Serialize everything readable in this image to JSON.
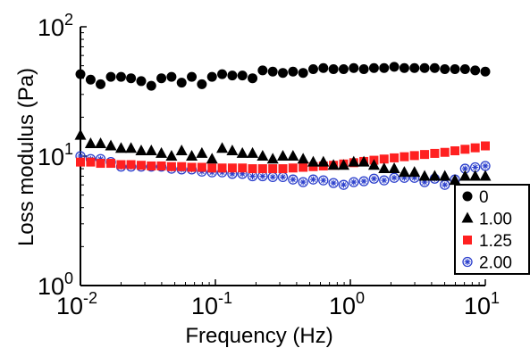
{
  "chart_data": {
    "type": "scatter",
    "title": "",
    "xlabel": "Frequency (Hz)",
    "ylabel": "Loss modulus (Pa)",
    "xscale": "log",
    "yscale": "log",
    "xlim": [
      0.01,
      10
    ],
    "ylim": [
      1,
      100
    ],
    "grid": false,
    "legend_position": "bottom-right",
    "x_ticks": [
      {
        "base": "10",
        "exp": "-2",
        "value": 0.01
      },
      {
        "base": "10",
        "exp": "-1",
        "value": 0.1
      },
      {
        "base": "10",
        "exp": "0",
        "value": 1
      },
      {
        "base": "10",
        "exp": "1",
        "value": 10
      }
    ],
    "y_ticks": [
      {
        "base": "10",
        "exp": "0",
        "value": 1
      },
      {
        "base": "10",
        "exp": "1",
        "value": 10
      },
      {
        "base": "10",
        "exp": "2",
        "value": 100
      }
    ],
    "x": [
      0.01,
      0.0119,
      0.0141,
      0.0168,
      0.02,
      0.0237,
      0.0282,
      0.0335,
      0.0398,
      0.0473,
      0.0562,
      0.0668,
      0.0794,
      0.0944,
      0.1122,
      0.1334,
      0.1585,
      0.1884,
      0.2239,
      0.2661,
      0.3162,
      0.3758,
      0.4467,
      0.5309,
      0.631,
      0.7499,
      0.8913,
      1.0593,
      1.2589,
      1.4962,
      1.7783,
      2.1135,
      2.5119,
      2.9854,
      3.5481,
      4.217,
      5.0119,
      5.9566,
      7.0795,
      8.4139,
      10.0
    ],
    "series": [
      {
        "name": "0",
        "marker": "circle",
        "color": "#000000",
        "values": [
          43,
          39,
          36,
          41,
          41,
          40,
          38,
          35,
          40,
          41,
          37,
          41,
          36,
          41,
          43,
          42,
          42,
          40,
          46,
          45,
          44,
          45,
          44,
          47,
          48,
          47,
          47,
          48,
          47,
          48,
          48,
          49,
          48,
          48,
          48,
          48,
          47,
          47,
          47,
          46,
          45
        ]
      },
      {
        "name": "1.00",
        "marker": "triangle",
        "color": "#000000",
        "values": [
          14.5,
          12.5,
          12.5,
          12.0,
          11.5,
          11.5,
          11.0,
          11.0,
          10.5,
          10.0,
          11.0,
          10.0,
          10.5,
          9.5,
          11.5,
          11.0,
          10.5,
          10.5,
          10.0,
          9.5,
          10.0,
          10.0,
          9.5,
          9.0,
          9.0,
          8.5,
          8.5,
          9.0,
          9.0,
          8.5,
          8.0,
          8.0,
          7.5,
          7.5,
          7.0,
          7.0,
          7.0,
          6.5,
          7.0,
          7.0,
          7.0
        ]
      },
      {
        "name": "1.25",
        "marker": "square",
        "color": "#ff2020",
        "values": [
          9.0,
          9.0,
          8.8,
          8.8,
          8.6,
          8.6,
          8.5,
          8.4,
          8.4,
          8.3,
          8.3,
          8.2,
          8.2,
          8.1,
          8.1,
          8.1,
          8.1,
          8.0,
          8.0,
          8.0,
          8.0,
          8.1,
          8.2,
          8.3,
          8.4,
          8.5,
          8.7,
          8.9,
          9.1,
          9.3,
          9.5,
          9.7,
          9.9,
          10.1,
          10.3,
          10.5,
          10.7,
          11.0,
          11.3,
          11.6,
          12.0
        ]
      },
      {
        "name": "2.00",
        "marker": "asterisk-circle",
        "color": "#2b3fcc",
        "values": [
          10.0,
          9.5,
          9.5,
          9.0,
          8.3,
          8.3,
          8.3,
          8.3,
          8.3,
          8.0,
          7.9,
          7.9,
          7.6,
          7.5,
          7.5,
          7.3,
          7.3,
          7.0,
          7.0,
          6.9,
          6.9,
          6.6,
          6.3,
          6.6,
          6.5,
          6.2,
          6.0,
          6.3,
          6.4,
          6.7,
          6.5,
          6.8,
          6.8,
          6.8,
          6.3,
          6.7,
          6.0,
          6.6,
          8.0,
          8.2,
          8.4
        ]
      }
    ]
  }
}
